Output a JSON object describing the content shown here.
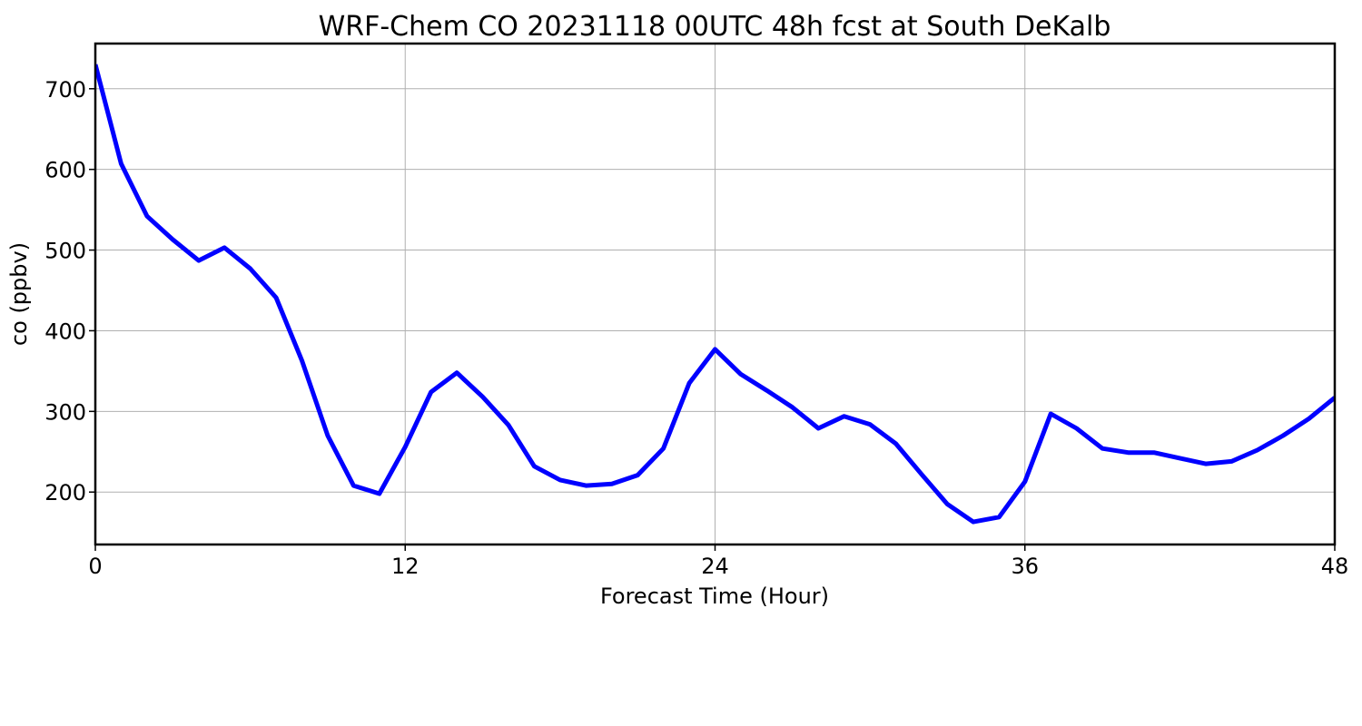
{
  "chart_data": {
    "type": "line",
    "title": "WRF-Chem CO  20231118 00UTC 48h fcst at South DeKalb",
    "xlabel": "Forecast Time (Hour)",
    "ylabel": "co  (ppbv)",
    "xlim": [
      0,
      48
    ],
    "ylim": [
      135,
      756
    ],
    "xticks": [
      0,
      12,
      24,
      36,
      48
    ],
    "yticks": [
      200,
      300,
      400,
      500,
      600,
      700
    ],
    "grid": true,
    "series": [
      {
        "color": "#0000ff",
        "x": [
          0,
          1,
          2,
          3,
          4,
          5,
          6,
          7,
          8,
          9,
          10,
          11,
          12,
          13,
          14,
          15,
          16,
          17,
          18,
          19,
          20,
          21,
          22,
          23,
          24,
          25,
          26,
          27,
          28,
          29,
          30,
          31,
          32,
          33,
          34,
          35,
          36,
          37,
          38,
          39,
          40,
          41,
          42,
          43,
          44,
          45,
          46,
          47,
          48
        ],
        "values": [
          730,
          607,
          542,
          513,
          487,
          503,
          477,
          441,
          363,
          270,
          208,
          198,
          256,
          324,
          348,
          318,
          283,
          232,
          215,
          208,
          210,
          221,
          254,
          335,
          377,
          346,
          326,
          305,
          279,
          294,
          284,
          260,
          222,
          185,
          163,
          169,
          213,
          297,
          279,
          254,
          249,
          249,
          242,
          235,
          238,
          252,
          270,
          291,
          317
        ]
      }
    ]
  }
}
